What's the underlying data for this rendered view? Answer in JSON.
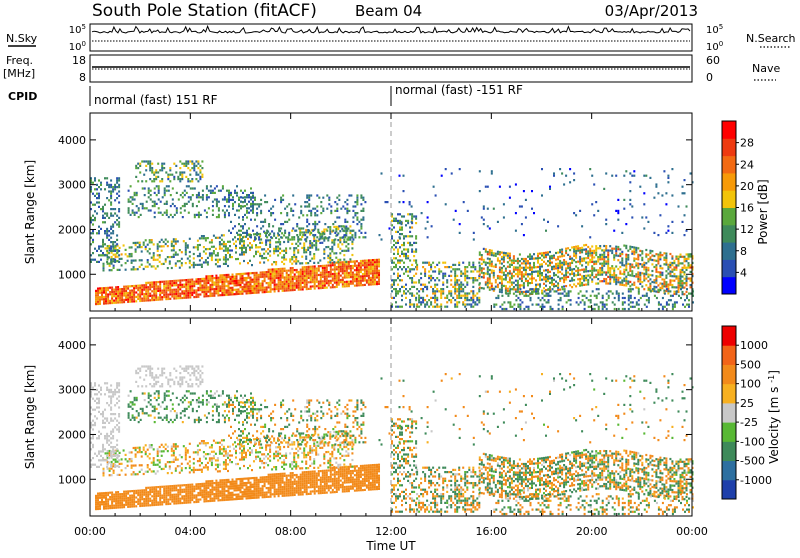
{
  "header": {
    "station": "South Pole Station (fitACF)",
    "beam": "Beam 04",
    "date": "03/Apr/2013"
  },
  "top_panels": {
    "nsky_label": "N.Sky",
    "nsky_ticks": [
      "10^5",
      "10^0"
    ],
    "nsearch_label": "N.Search",
    "nsearch_ticks": [
      "10^5",
      "10^0"
    ],
    "freq_label_1": "Freq.",
    "freq_label_2": "[MHz]",
    "freq_ticks": [
      "18",
      "8"
    ],
    "nave_label": "Nave",
    "nave_ticks": [
      "60",
      "0"
    ],
    "cpid_label": "CPID",
    "cpid_segments": [
      "normal (fast) 151 RF",
      "normal (fast) -151 RF"
    ]
  },
  "chart_data": [
    {
      "type": "heatmap",
      "name": "power",
      "ylabel": "Slant Range [km]",
      "yticks": [
        1000,
        2000,
        3000,
        4000
      ],
      "ylim": [
        180,
        4600
      ],
      "xlim": [
        0,
        24
      ],
      "colorbar": {
        "label": "Power [dB]",
        "ticks": [
          "28",
          "24",
          "20",
          "16",
          "12",
          "8",
          "4"
        ],
        "colors": [
          "#0000ff",
          "#2a4fb3",
          "#2e6f8f",
          "#3e8a5a",
          "#5aa83c",
          "#f2c40a",
          "#f79a08",
          "#f36a12",
          "#ee3a10",
          "#ff0000"
        ]
      }
    },
    {
      "type": "heatmap",
      "name": "velocity",
      "ylabel": "Slant Range [km]",
      "yticks": [
        1000,
        2000,
        3000,
        4000
      ],
      "ylim": [
        180,
        4600
      ],
      "xlim": [
        0,
        24
      ],
      "colorbar": {
        "label": "Velocity [m s^-1]",
        "ticks": [
          "1000",
          "500",
          "100",
          "25",
          "-25",
          "-100",
          "-500",
          "-1000"
        ],
        "colors": [
          "#1e3faa",
          "#2d6fa0",
          "#3e8a5a",
          "#58b834",
          "#c8c8c8",
          "#f7b020",
          "#f28a1a",
          "#f26418",
          "#ee0000"
        ]
      }
    }
  ],
  "x_axis": {
    "ticks": [
      "00:00",
      "04:00",
      "08:00",
      "12:00",
      "16:00",
      "20:00",
      "00:00"
    ],
    "label": "Time UT"
  }
}
